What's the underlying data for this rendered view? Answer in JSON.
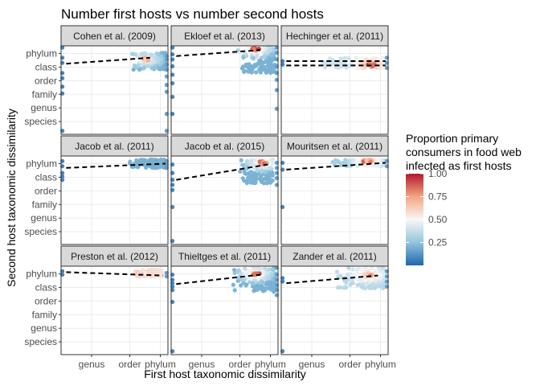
{
  "chart_data": {
    "type": "scatter",
    "title": "Number first hosts vs number second hosts",
    "xlabel": "First host taxonomic dissimilarity",
    "ylabel": "Second host taxonomic dissimilarity",
    "x_ticks": [
      "genus",
      "order",
      "phylum"
    ],
    "y_ticks": [
      "phylum",
      "class",
      "order",
      "family",
      "genus",
      "species"
    ],
    "x_range_level": [
      1.8,
      6.0
    ],
    "y_range_level": [
      0.8,
      6.0
    ],
    "legend": {
      "title_lines": [
        "Proportion primary",
        "consumers in food web",
        "infected as first hosts"
      ],
      "ticks": [
        "1.00",
        "0.75",
        "0.50",
        "0.25"
      ],
      "tick_values": [
        1.0,
        0.75,
        0.5,
        0.25
      ],
      "range": [
        0.0,
        1.0
      ],
      "placement": "right"
    },
    "colors": {
      "low": "#2166ac",
      "mid": "#f7f7f7",
      "high": "#b2182b"
    },
    "panels": [
      {
        "name": "Cohen et al. (2009)",
        "fit": [
          [
            2.0,
            4.95
          ],
          [
            5.3,
            5.3
          ]
        ],
        "hot": [
          5.1,
          5.2,
          0.75
        ],
        "left_col": [
          5.9,
          5.3,
          5.0,
          4.4,
          4.1,
          3.6,
          3.2,
          1.0
        ],
        "right_col": [
          5.4,
          5.2,
          4.9,
          4.6,
          4.2,
          3.7,
          3.3,
          2.0,
          1.0
        ],
        "cloud": [
          4.6,
          5.9,
          4.6,
          5.6,
          0.2
        ]
      },
      {
        "name": "Ekloef et al. (2013)",
        "fit": [
          [
            2.0,
            5.4
          ],
          [
            5.3,
            5.75
          ]
        ],
        "hot": [
          5.1,
          5.8,
          0.95
        ],
        "left_col": [
          5.9,
          5.5,
          5.2,
          4.8,
          4.3,
          3.8,
          3.0,
          2.0
        ],
        "right_col": [
          5.9,
          5.6,
          5.2,
          4.8,
          4.4,
          4.0,
          3.4,
          2.3
        ],
        "cloud": [
          4.4,
          5.9,
          4.4,
          6.0,
          0.2
        ]
      },
      {
        "name": "Hechinger et al. (2011)",
        "fit": [
          [
            2.0,
            5.1
          ],
          [
            5.9,
            5.1
          ]
        ],
        "fit2": [
          [
            2.0,
            4.85
          ],
          [
            5.9,
            4.85
          ]
        ],
        "hot": [
          5.3,
          4.9,
          0.95
        ],
        "left_col": [
          5.1,
          4.9
        ],
        "right_col": [
          5.3,
          5.0,
          4.7
        ],
        "cloud": [
          3.4,
          5.9,
          4.7,
          5.3,
          0.4
        ]
      },
      {
        "name": "Jacob et al. (2011)",
        "fit": [
          [
            2.0,
            5.3
          ],
          [
            5.9,
            5.55
          ]
        ],
        "hot": [
          5.4,
          5.6,
          0.2
        ],
        "left_col": [
          5.7,
          5.4,
          5.0,
          4.8,
          4.6
        ],
        "right_col": [
          5.7,
          5.5,
          5.3
        ],
        "cloud": [
          4.5,
          5.9,
          5.3,
          5.8,
          0.2
        ]
      },
      {
        "name": "Jacob et al. (2015)",
        "fit": [
          [
            2.0,
            4.6
          ],
          [
            5.6,
            5.5
          ]
        ],
        "hot": [
          5.4,
          5.6,
          0.9
        ],
        "left_col": [
          5.5,
          5.0,
          4.6,
          4.3,
          4.0,
          3.0,
          1.0
        ],
        "right_col": [
          5.6,
          5.3,
          5.0,
          4.7,
          4.3
        ],
        "cloud": [
          4.5,
          5.8,
          4.4,
          5.8,
          0.2
        ]
      },
      {
        "name": "Mouritsen et al. (2011)",
        "fit": [
          [
            2.0,
            5.2
          ],
          [
            5.9,
            5.6
          ]
        ],
        "hot": [
          5.2,
          5.7,
          0.9
        ],
        "left_col": [
          5.6,
          5.2,
          3.0
        ],
        "right_col": [
          5.7,
          5.4
        ],
        "cloud": [
          3.8,
          5.9,
          5.4,
          5.8,
          0.3
        ]
      },
      {
        "name": "Preston et al. (2012)",
        "fit": [
          [
            2.0,
            5.65
          ],
          [
            5.8,
            5.45
          ]
        ],
        "hot": [
          5.0,
          5.6,
          0.65
        ],
        "left_col": [
          5.7,
          5.5
        ],
        "right_col": [
          5.6,
          5.4
        ],
        "cloud": [
          4.6,
          5.8,
          5.4,
          5.8,
          0.55
        ]
      },
      {
        "name": "Thieltges et al. (2011)",
        "fit": [
          [
            2.0,
            4.95
          ],
          [
            5.3,
            5.5
          ]
        ],
        "hot": [
          5.1,
          5.55,
          0.95
        ],
        "left_col": [
          5.5,
          5.2,
          5.0,
          4.8,
          4.6,
          3.9,
          1.0
        ],
        "right_col": [
          5.9,
          5.5,
          5.2,
          4.9,
          4.6,
          4.3
        ],
        "cloud": [
          4.2,
          5.9,
          4.5,
          5.9,
          0.2
        ]
      },
      {
        "name": "Zander et al. (2011)",
        "fit": [
          [
            2.0,
            5.0
          ],
          [
            5.6,
            5.45
          ]
        ],
        "hot": [
          5.2,
          5.5,
          0.85
        ],
        "left_col": [
          5.3,
          5.1,
          1.0
        ],
        "right_col": [
          5.7,
          5.4,
          5.1,
          4.8
        ],
        "cloud": [
          3.8,
          5.9,
          4.7,
          5.9,
          0.35
        ]
      }
    ]
  }
}
